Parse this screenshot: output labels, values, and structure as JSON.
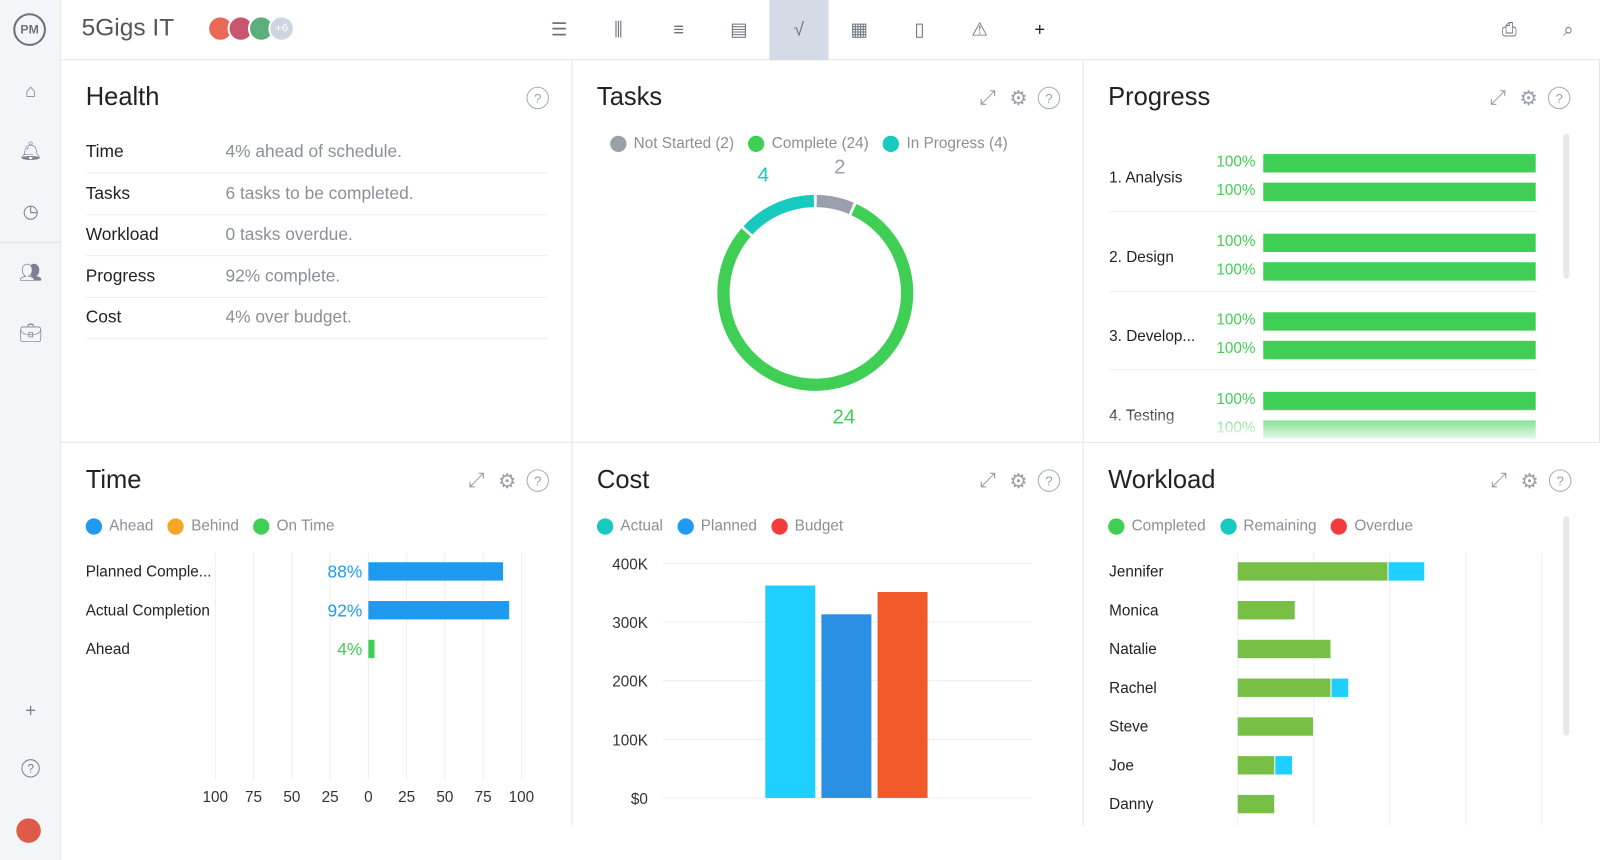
{
  "app": {
    "logo": "PM",
    "project_title": "5Gigs IT",
    "avatars_extra": "+6"
  },
  "toolbar": {
    "views": [
      {
        "icon": "list-icon"
      },
      {
        "icon": "board-icon"
      },
      {
        "icon": "gantt-icon"
      },
      {
        "icon": "table-icon"
      },
      {
        "icon": "dashboard-icon",
        "active": true
      },
      {
        "icon": "calendar-icon"
      },
      {
        "icon": "document-icon"
      },
      {
        "icon": "alert-icon"
      },
      {
        "icon": "plus-icon",
        "label": "+"
      }
    ],
    "right": [
      {
        "icon": "print-icon"
      },
      {
        "icon": "search-icon"
      }
    ]
  },
  "sidebar": {
    "items": [
      {
        "icon": "home-icon"
      },
      {
        "icon": "bell-icon"
      },
      {
        "icon": "clock-icon"
      },
      {
        "icon": "people-icon"
      },
      {
        "icon": "briefcase-icon"
      }
    ],
    "bottom": [
      {
        "icon": "plus-icon",
        "label": "+"
      },
      {
        "icon": "help-icon",
        "label": "?"
      }
    ]
  },
  "health": {
    "title": "Health",
    "rows": [
      {
        "k": "Time",
        "v": "4% ahead of schedule."
      },
      {
        "k": "Tasks",
        "v": "6 tasks to be completed."
      },
      {
        "k": "Workload",
        "v": "0 tasks overdue."
      },
      {
        "k": "Progress",
        "v": "92% complete."
      },
      {
        "k": "Cost",
        "v": "4% over budget."
      }
    ]
  },
  "tasks": {
    "title": "Tasks",
    "legend": [
      "Not Started (2)",
      "Complete (24)",
      "In Progress (4)"
    ],
    "chart_data": {
      "type": "pie",
      "categories": [
        "Not Started",
        "Complete",
        "In Progress"
      ],
      "values": [
        2,
        24,
        4
      ],
      "labels": [
        "2",
        "24",
        "4"
      ],
      "colors": [
        "#9aa0ab",
        "#3fcf55",
        "#18c9bd"
      ]
    }
  },
  "progress": {
    "title": "Progress",
    "groups": [
      {
        "name": "1. Analysis",
        "values": [
          "100%",
          "100%"
        ]
      },
      {
        "name": "2. Design",
        "values": [
          "100%",
          "100%"
        ]
      },
      {
        "name": "3. Develop...",
        "values": [
          "100%",
          "100%"
        ]
      },
      {
        "name": "4. Testing",
        "values": [
          "100%",
          "100%"
        ]
      }
    ],
    "fill_percent": 100,
    "color": "#3fcf55"
  },
  "time": {
    "title": "Time",
    "legend": [
      "Ahead",
      "Behind",
      "On Time"
    ],
    "legend_colors": [
      "#1e9bf0",
      "#f5a623",
      "#3fcf55"
    ],
    "chart_data": {
      "type": "bar",
      "orientation": "horizontal",
      "categories": [
        "Planned Comple...",
        "Actual Completion",
        "Ahead"
      ],
      "values": [
        88,
        92,
        4
      ],
      "labels": [
        "88%",
        "92%",
        "4%"
      ],
      "colors": [
        "#1e9bf0",
        "#1e9bf0",
        "#3fcf55"
      ],
      "xlim": [
        -100,
        100
      ],
      "xticks": [
        "100",
        "75",
        "50",
        "25",
        "0",
        "25",
        "50",
        "75",
        "100"
      ],
      "grid": true
    }
  },
  "cost": {
    "title": "Cost",
    "legend": [
      "Actual",
      "Planned",
      "Budget"
    ],
    "legend_colors": [
      "#18c9bd",
      "#1e9bf0",
      "#f23c3c"
    ],
    "chart_data": {
      "type": "bar",
      "series": [
        {
          "name": "Actual",
          "values": [
            362000
          ],
          "color": "#1ecfff"
        },
        {
          "name": "Planned",
          "values": [
            313000
          ],
          "color": "#2b8fe3"
        },
        {
          "name": "Budget",
          "values": [
            351000
          ],
          "color": "#f05a28"
        }
      ],
      "ylim": [
        0,
        400000
      ],
      "yticks": [
        "$0",
        "100K",
        "200K",
        "300K",
        "400K"
      ],
      "grid": true
    }
  },
  "workload": {
    "title": "Workload",
    "legend": [
      "Completed",
      "Remaining",
      "Overdue"
    ],
    "legend_colors": [
      "#3fcf55",
      "#18c9bd",
      "#f23c3c"
    ],
    "chart_data": {
      "type": "bar",
      "orientation": "horizontal",
      "stacked": true,
      "categories": [
        "Jennifer",
        "Monica",
        "Natalie",
        "Rachel",
        "Steve",
        "Joe",
        "Danny"
      ],
      "series": [
        {
          "name": "Completed",
          "values": [
            19.7,
            7.5,
            12.2,
            12.2,
            9.9,
            4.8,
            4.8
          ],
          "color": "#78c045"
        },
        {
          "name": "Remaining",
          "values": [
            4.7,
            0,
            0,
            2.2,
            0,
            2.2,
            0
          ],
          "color": "#1ecfff"
        }
      ],
      "grid": true
    }
  }
}
